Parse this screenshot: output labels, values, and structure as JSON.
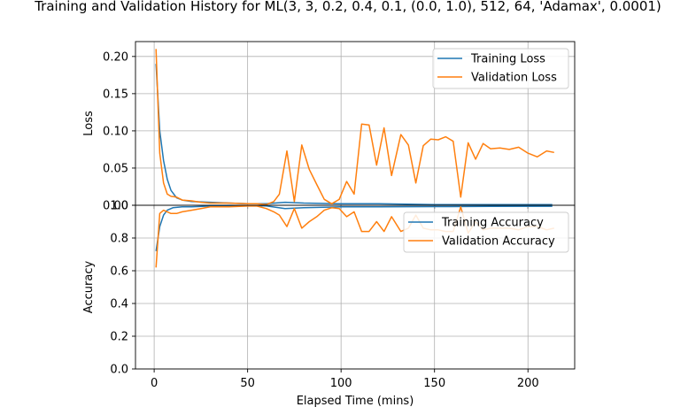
{
  "chart_data": {
    "title": "Training and Validation History for ML(3, 3, 0.2, 0.4, 0.1, (0.0, 1.0), 512, 64, 'Adamax', 0.0001)",
    "xlabel": "Elapsed Time (mins)",
    "xlim": [
      -10,
      225
    ],
    "xticks": [
      0,
      50,
      100,
      150,
      200
    ],
    "xtick_labels": [
      "0",
      "50",
      "100",
      "150",
      "200"
    ],
    "grid": true,
    "colors": {
      "training": "#1f77b4",
      "validation": "#ff7f0e"
    },
    "panels": [
      {
        "id": "loss",
        "type": "line",
        "ylabel": "Loss",
        "ylim": [
          0.0,
          0.22
        ],
        "yticks": [
          0.0,
          0.05,
          0.1,
          0.15,
          0.2
        ],
        "ytick_labels": [
          "0.00",
          "0.05",
          "0.10",
          "0.15",
          "0.20"
        ],
        "legend_placement": "upper-right",
        "series": [
          {
            "name": "Training Loss",
            "color": "#1f77b4",
            "x": [
              1,
              3,
              5,
              7,
              9,
              12,
              15,
              20,
              30,
              40,
              50,
              60,
              70,
              80,
              100,
              120,
              150,
              180,
              213
            ],
            "y": [
              0.19,
              0.1,
              0.06,
              0.035,
              0.02,
              0.01,
              0.007,
              0.005,
              0.004,
              0.003,
              0.002,
              0.002,
              0.004,
              0.003,
              0.002,
              0.002,
              0.001,
              0.001,
              0.001
            ]
          },
          {
            "name": "Validation Loss",
            "color": "#ff7f0e",
            "x": [
              1,
              3,
              5,
              7,
              9,
              12,
              15,
              20,
              25,
              30,
              40,
              50,
              55,
              60,
              64,
              67,
              71,
              75,
              79,
              83,
              87,
              91,
              95,
              99,
              103,
              107,
              111,
              115,
              119,
              123,
              127,
              132,
              136,
              140,
              144,
              148,
              152,
              156,
              160,
              164,
              168,
              172,
              176,
              180,
              185,
              190,
              195,
              200,
              205,
              210,
              214
            ],
            "y": [
              0.21,
              0.07,
              0.03,
              0.015,
              0.012,
              0.011,
              0.007,
              0.006,
              0.004,
              0.003,
              0.003,
              0.002,
              0.002,
              0.001,
              0.005,
              0.015,
              0.073,
              0.005,
              0.081,
              0.048,
              0.028,
              0.008,
              0.002,
              0.008,
              0.032,
              0.015,
              0.109,
              0.108,
              0.054,
              0.104,
              0.04,
              0.095,
              0.081,
              0.03,
              0.08,
              0.089,
              0.088,
              0.092,
              0.086,
              0.011,
              0.084,
              0.062,
              0.083,
              0.076,
              0.077,
              0.075,
              0.078,
              0.07,
              0.065,
              0.073,
              0.071
            ]
          }
        ]
      },
      {
        "id": "accuracy",
        "type": "line",
        "ylabel": "Accuracy",
        "ylim": [
          0.0,
          1.0
        ],
        "yticks": [
          0.0,
          0.2,
          0.4,
          0.6,
          0.8,
          1.0
        ],
        "ytick_labels": [
          "0.0",
          "0.2",
          "0.4",
          "0.6",
          "0.8",
          "1.0"
        ],
        "legend_placement": "upper-right",
        "series": [
          {
            "name": "Training Accuracy",
            "color": "#1f77b4",
            "x": [
              1,
              3,
              5,
              7,
              10,
              15,
              20,
              30,
              40,
              50,
              60,
              70,
              80,
              100,
              120,
              150,
              180,
              213
            ],
            "y": [
              0.72,
              0.87,
              0.94,
              0.97,
              0.985,
              0.99,
              0.99,
              0.995,
              0.998,
              0.999,
              0.996,
              0.98,
              0.985,
              0.99,
              0.99,
              0.992,
              0.993,
              0.994
            ]
          },
          {
            "name": "Validation Accuracy",
            "color": "#ff7f0e",
            "x": [
              1,
              3,
              5,
              7,
              9,
              12,
              15,
              20,
              25,
              30,
              40,
              50,
              55,
              60,
              64,
              67,
              71,
              75,
              79,
              83,
              87,
              91,
              95,
              99,
              103,
              107,
              111,
              115,
              119,
              123,
              127,
              132,
              136,
              140,
              144,
              148,
              152,
              156,
              160,
              164,
              168,
              172,
              176,
              180,
              185,
              190,
              195,
              200,
              205,
              210,
              214
            ],
            "y": [
              0.62,
              0.95,
              0.97,
              0.96,
              0.95,
              0.95,
              0.96,
              0.97,
              0.98,
              0.99,
              0.99,
              0.995,
              0.995,
              0.98,
              0.96,
              0.94,
              0.87,
              0.98,
              0.86,
              0.9,
              0.93,
              0.97,
              0.985,
              0.98,
              0.93,
              0.96,
              0.84,
              0.84,
              0.9,
              0.84,
              0.93,
              0.84,
              0.86,
              0.94,
              0.86,
              0.85,
              0.85,
              0.84,
              0.84,
              0.99,
              0.83,
              0.9,
              0.85,
              0.86,
              0.86,
              0.86,
              0.85,
              0.87,
              0.87,
              0.85,
              0.86
            ]
          }
        ]
      }
    ]
  }
}
